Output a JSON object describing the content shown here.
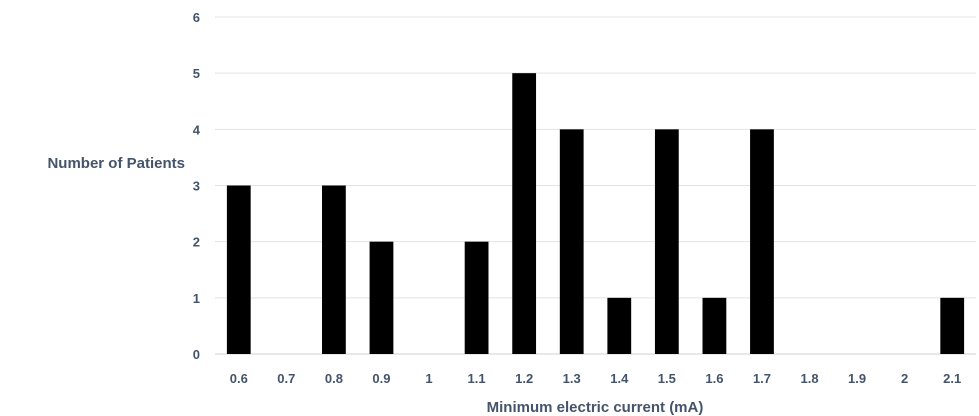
{
  "chart_data": {
    "type": "bar",
    "title": "",
    "xlabel": "Minimum electric current (mA)",
    "ylabel": "Number of Patients",
    "categories": [
      "0.6",
      "0.7",
      "0.8",
      "0.9",
      "1",
      "1.1",
      "1.2",
      "1.3",
      "1.4",
      "1.5",
      "1.6",
      "1.7",
      "1.8",
      "1.9",
      "2",
      "2.1"
    ],
    "values": [
      3,
      0,
      3,
      2,
      0,
      2,
      5,
      4,
      1,
      4,
      1,
      4,
      0,
      0,
      0,
      1
    ],
    "ylim": [
      0,
      6
    ],
    "yticks": [
      "0",
      "1",
      "2",
      "3",
      "4",
      "5",
      "6"
    ],
    "grid": true,
    "legend": "none",
    "bar_color": "#000000",
    "grid_color": "#e3e3e3",
    "text_color": "#44546a"
  }
}
